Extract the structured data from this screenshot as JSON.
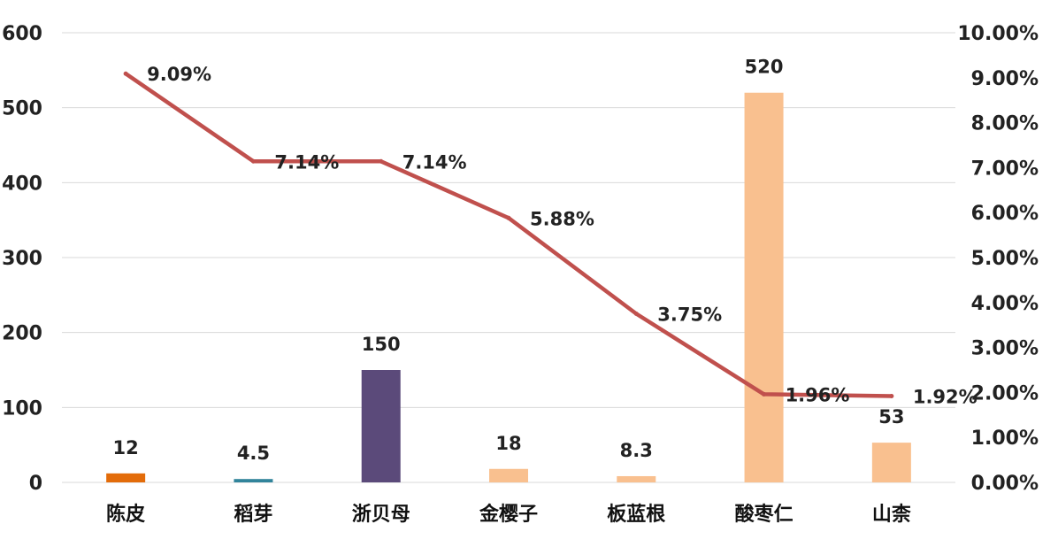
{
  "chart_data": {
    "type": "bar",
    "categories": [
      "陈皮",
      "稻芽",
      "浙贝母",
      "金樱子",
      "板蓝根",
      "酸枣仁",
      "山柰"
    ],
    "series": [
      {
        "type": "bar",
        "axis": "left",
        "values": [
          12,
          4.5,
          150,
          18,
          8.3,
          520,
          53
        ],
        "labels": [
          "12",
          "4.5",
          "150",
          "18",
          "8.3",
          "520",
          "53"
        ],
        "colors": [
          "#E36C0A",
          "#31849B",
          "#5B4A7A",
          "#F9C08F",
          "#F9C08F",
          "#F9C08F",
          "#F9C08F"
        ]
      },
      {
        "type": "line",
        "axis": "right",
        "values": [
          9.09,
          7.14,
          7.14,
          5.88,
          3.75,
          1.96,
          1.92
        ],
        "labels": [
          "9.09%",
          "7.14%",
          "7.14%",
          "5.88%",
          "3.75%",
          "1.96%",
          "1.92%"
        ],
        "color": "#C0504D"
      }
    ],
    "y_left": {
      "ylim": [
        0,
        600
      ],
      "ticks": [
        "0",
        "100",
        "200",
        "300",
        "400",
        "500",
        "600"
      ]
    },
    "y_right": {
      "ylim": [
        0,
        10
      ],
      "ticks": [
        "0.00%",
        "1.00%",
        "2.00%",
        "3.00%",
        "4.00%",
        "5.00%",
        "6.00%",
        "7.00%",
        "8.00%",
        "9.00%",
        "10.00%"
      ]
    },
    "grid": true,
    "legend": "none"
  }
}
